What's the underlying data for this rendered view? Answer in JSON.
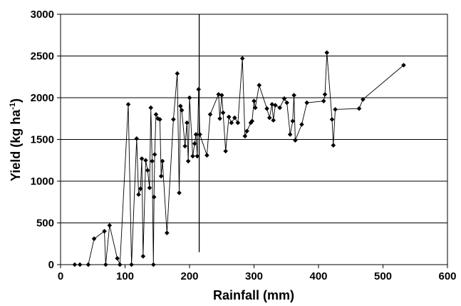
{
  "chart_data": {
    "type": "line",
    "title": "",
    "xlabel": "Rainfall (mm)",
    "ylabel_parts": {
      "main": "Yield (kg ha",
      "sup": "-1",
      "end": ")"
    },
    "xlim": [
      0,
      600
    ],
    "ylim": [
      0,
      3000
    ],
    "xticks": [
      0,
      100,
      200,
      300,
      400,
      500,
      600
    ],
    "yticks": [
      0,
      500,
      1000,
      1500,
      2000,
      2500,
      3000
    ],
    "grid": "horizontal",
    "legend": "none",
    "vertical_line": {
      "x": 215,
      "y_from": 150,
      "y_to": 3000
    },
    "series": [
      {
        "marker": "diamond",
        "color": "#000000",
        "points": [
          [
            22,
            0
          ],
          [
            30,
            0
          ],
          [
            43,
            0
          ],
          [
            52,
            310
          ],
          [
            68,
            400
          ],
          [
            70,
            0
          ],
          [
            76,
            470
          ],
          [
            88,
            75
          ],
          [
            92,
            0
          ],
          [
            105,
            1920
          ],
          [
            110,
            0
          ],
          [
            118,
            1510
          ],
          [
            121,
            840
          ],
          [
            124,
            910
          ],
          [
            126,
            1270
          ],
          [
            128,
            100
          ],
          [
            132,
            1250
          ],
          [
            135,
            1130
          ],
          [
            138,
            920
          ],
          [
            140,
            1880
          ],
          [
            142,
            1240
          ],
          [
            144,
            0
          ],
          [
            145,
            810
          ],
          [
            146,
            1320
          ],
          [
            148,
            1800
          ],
          [
            151,
            1750
          ],
          [
            154,
            1740
          ],
          [
            156,
            1060
          ],
          [
            158,
            1240
          ],
          [
            165,
            380
          ],
          [
            175,
            1740
          ],
          [
            181,
            2290
          ],
          [
            184,
            860
          ],
          [
            186,
            1900
          ],
          [
            188,
            1850
          ],
          [
            193,
            1420
          ],
          [
            196,
            1700
          ],
          [
            198,
            1240
          ],
          [
            200,
            2000
          ],
          [
            205,
            1300
          ],
          [
            208,
            1450
          ],
          [
            210,
            1560
          ],
          [
            212,
            1300
          ],
          [
            214,
            2100
          ],
          [
            216,
            1560
          ],
          [
            227,
            1310
          ],
          [
            232,
            1800
          ],
          [
            245,
            2040
          ],
          [
            247,
            1750
          ],
          [
            250,
            2030
          ],
          [
            252,
            1820
          ],
          [
            256,
            1360
          ],
          [
            261,
            1770
          ],
          [
            265,
            1700
          ],
          [
            270,
            1760
          ],
          [
            275,
            1700
          ],
          [
            282,
            2470
          ],
          [
            286,
            1540
          ],
          [
            289,
            1600
          ],
          [
            295,
            1700
          ],
          [
            297,
            1720
          ],
          [
            300,
            1960
          ],
          [
            302,
            1880
          ],
          [
            308,
            2150
          ],
          [
            320,
            1870
          ],
          [
            324,
            1760
          ],
          [
            328,
            1920
          ],
          [
            330,
            1730
          ],
          [
            333,
            1910
          ],
          [
            340,
            1880
          ],
          [
            347,
            1990
          ],
          [
            351,
            1940
          ],
          [
            356,
            1560
          ],
          [
            360,
            1720
          ],
          [
            362,
            2030
          ],
          [
            364,
            1490
          ],
          [
            374,
            1680
          ],
          [
            382,
            1940
          ],
          [
            408,
            1960
          ],
          [
            410,
            2040
          ],
          [
            413,
            2540
          ],
          [
            421,
            1740
          ],
          [
            423,
            1430
          ],
          [
            426,
            1860
          ],
          [
            463,
            1870
          ],
          [
            469,
            1980
          ],
          [
            532,
            2390
          ]
        ]
      }
    ]
  }
}
